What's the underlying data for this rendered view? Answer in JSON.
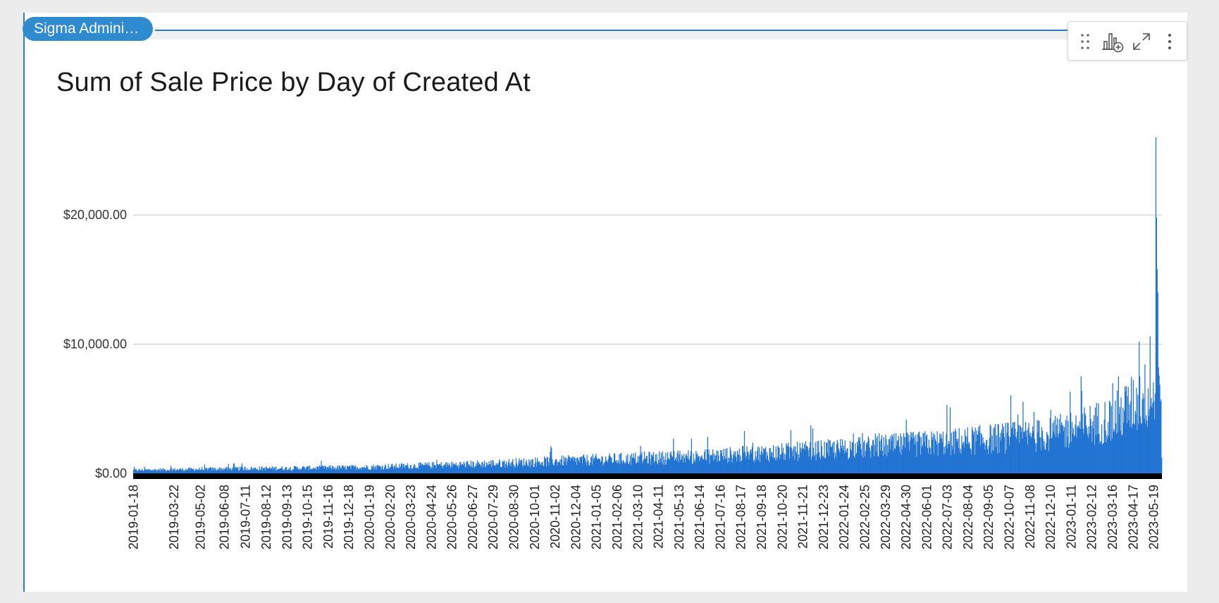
{
  "source": {
    "label": "Sigma Admini…"
  },
  "chart_data": {
    "type": "bar",
    "title": "Sum of Sale Price by Day of Created At",
    "xlabel": "",
    "ylabel": "",
    "color": "#2374d2",
    "ylim": [
      0,
      26000
    ],
    "grid": "horizontal",
    "legend": "none",
    "yticks": [
      {
        "value": 0,
        "label": "$0.00"
      },
      {
        "value": 10000,
        "label": "$10,000.00"
      },
      {
        "value": 20000,
        "label": "$20,000.00"
      }
    ],
    "x_tick_labels": [
      "2019-01-18",
      "2019-03-22",
      "2019-05-02",
      "2019-06-08",
      "2019-07-11",
      "2019-08-12",
      "2019-09-13",
      "2019-10-15",
      "2019-11-16",
      "2019-12-18",
      "2020-01-19",
      "2020-02-20",
      "2020-03-23",
      "2020-04-24",
      "2020-05-26",
      "2020-06-27",
      "2020-07-29",
      "2020-08-30",
      "2020-10-01",
      "2020-11-02",
      "2020-12-04",
      "2021-01-05",
      "2021-02-06",
      "2021-03-10",
      "2021-04-11",
      "2021-05-13",
      "2021-06-14",
      "2021-07-16",
      "2021-08-17",
      "2021-09-18",
      "2021-10-20",
      "2021-11-21",
      "2021-12-23",
      "2022-01-24",
      "2022-02-25",
      "2022-03-29",
      "2022-04-30",
      "2022-06-01",
      "2022-07-03",
      "2022-08-04",
      "2022-09-05",
      "2022-10-07",
      "2022-11-08",
      "2022-12-10",
      "2023-01-11",
      "2023-02-12",
      "2023-03-16",
      "2023-04-17",
      "2023-05-19"
    ],
    "x_start": "2019-01-18",
    "x_end": "2023-05-31",
    "daily_trend": [
      {
        "x": "2019-01-18",
        "y": 250
      },
      {
        "x": "2019-06-08",
        "y": 350
      },
      {
        "x": "2019-12-18",
        "y": 450
      },
      {
        "x": "2020-06-27",
        "y": 700
      },
      {
        "x": "2020-12-04",
        "y": 1000
      },
      {
        "x": "2021-06-14",
        "y": 1300
      },
      {
        "x": "2021-12-23",
        "y": 1800
      },
      {
        "x": "2022-06-01",
        "y": 2300
      },
      {
        "x": "2022-12-10",
        "y": 3000
      },
      {
        "x": "2023-03-16",
        "y": 4200
      },
      {
        "x": "2023-05-05",
        "y": 6000
      },
      {
        "x": "2023-05-31",
        "y": 6000
      }
    ],
    "notable_points": [
      {
        "x": "2023-04-26",
        "y": 10200
      },
      {
        "x": "2023-05-13",
        "y": 10600
      },
      {
        "x": "2023-05-22",
        "y": 26000
      },
      {
        "x": "2023-05-23",
        "y": 19800
      },
      {
        "x": "2023-05-24",
        "y": 15800
      },
      {
        "x": "2023-05-25",
        "y": 14000
      },
      {
        "x": "2023-05-26",
        "y": 8200
      }
    ]
  },
  "toolbar": {
    "icons": [
      "drag-handle-icon",
      "add-chart-icon",
      "expand-icon",
      "more-vertical-icon"
    ]
  }
}
